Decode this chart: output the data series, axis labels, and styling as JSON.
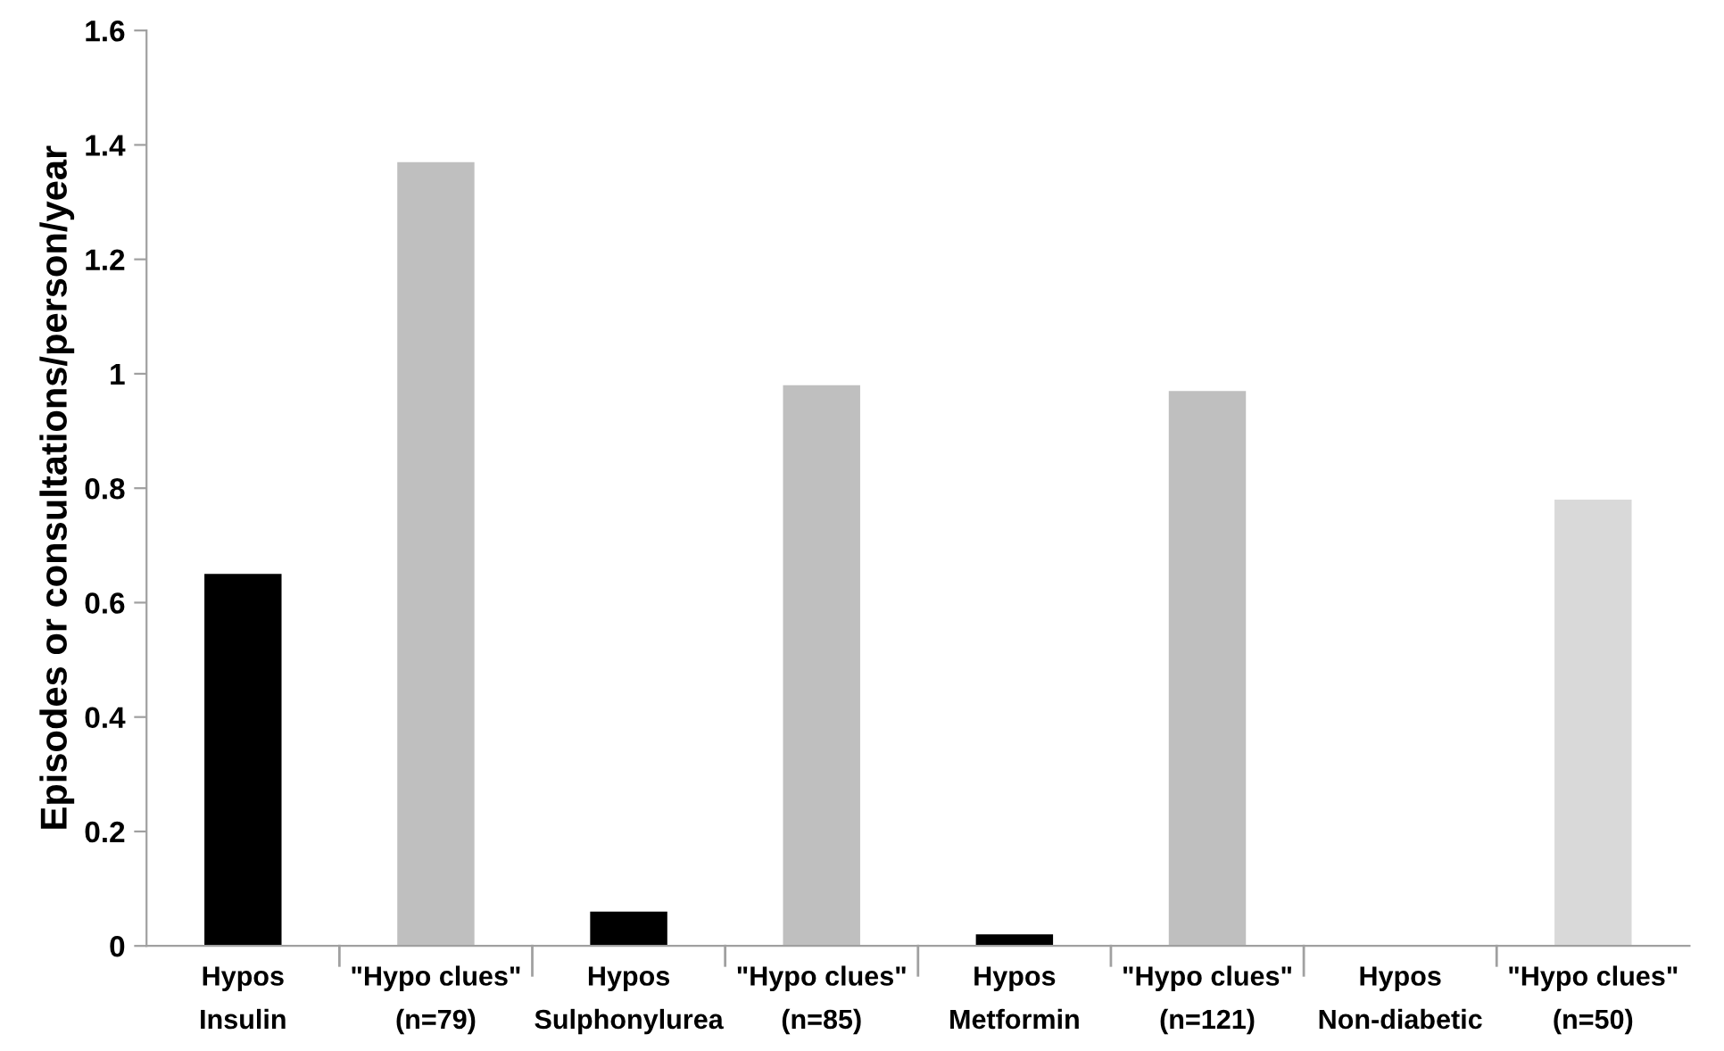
{
  "chart_data": {
    "type": "bar",
    "ylabel": "Episodes or consultations/person/year",
    "categories": [
      "Hypos\nInsulin",
      "\"Hypo clues\"\n(n=79)",
      "Hypos\nSulphonylurea",
      "\"Hypo clues\"\n(n=85)",
      "Hypos\nMetformin",
      "\"Hypo clues\"\n(n=121)",
      "Hypos\nNon-diabetic",
      "\"Hypo clues\"\n(n=50)"
    ],
    "values": [
      0.65,
      1.37,
      0.06,
      0.98,
      0.02,
      0.97,
      null,
      0.78
    ],
    "colors": [
      "#000000",
      "#bfbfbf",
      "#000000",
      "#bfbfbf",
      "#000000",
      "#bfbfbf",
      "#000000",
      "#d9d9d9"
    ],
    "ylim": [
      0,
      1.6
    ],
    "yticks": [
      0,
      0.2,
      0.4,
      0.6,
      0.8,
      1,
      1.2,
      1.4,
      1.6
    ],
    "grid": false,
    "legend": false
  }
}
